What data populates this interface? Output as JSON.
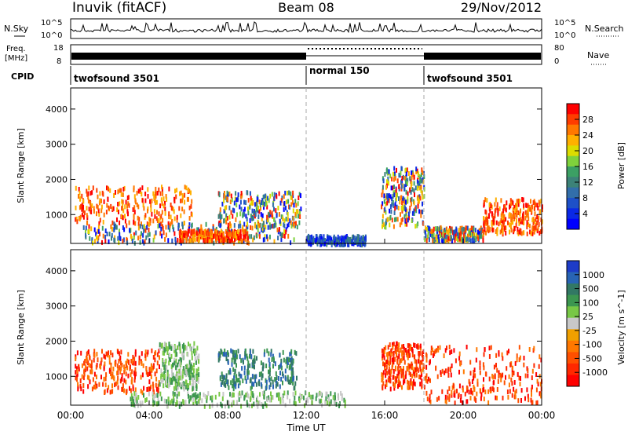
{
  "header": {
    "station": "Inuvik (fitACF)",
    "beam": "Beam 08",
    "date": "29/Nov/2012"
  },
  "nsky": {
    "label": "N.Sky",
    "ticks": [
      "10^5",
      "10^0"
    ],
    "right_label": "N.Search",
    "right_ticks": [
      "10^5",
      "10^0"
    ]
  },
  "freq": {
    "label_line1": "Freq.",
    "label_line2": "[MHz]",
    "ticks": [
      "18",
      "8"
    ],
    "right_label": "Nave",
    "right_ticks": [
      "80",
      "0"
    ]
  },
  "cpid": {
    "label": "CPID",
    "segments": [
      {
        "name": "twofsound 3501",
        "start": 0,
        "end": 12
      },
      {
        "name": "normal 150",
        "start": 12,
        "end": 18
      },
      {
        "name": "twofsound 3501",
        "start": 18,
        "end": 24
      }
    ]
  },
  "x_axis": {
    "label": "Time UT",
    "ticks": [
      "00:00",
      "04:00",
      "08:00",
      "12:00",
      "16:00",
      "20:00",
      "00:00"
    ],
    "range_hours": [
      0,
      24
    ]
  },
  "chart_data": [
    {
      "type": "heatmap",
      "quantity": "power",
      "ylabel": "Slant Range [km]",
      "ylim": [
        180,
        4600
      ],
      "yticks": [
        1000,
        2000,
        3000,
        4000
      ],
      "colorbar": {
        "label": "Power [dB]",
        "ticks": [
          "28",
          "24",
          "20",
          "16",
          "12",
          "8",
          "4"
        ],
        "colors": [
          "#ff0000",
          "#ff3c00",
          "#ff7800",
          "#ffb000",
          "#dcdc00",
          "#7fd23c",
          "#3ca064",
          "#3c8278",
          "#326eaa",
          "#1e50c8",
          "#0a28e6",
          "#0000ff"
        ]
      },
      "regions": [
        {
          "t": [
            0.2,
            6.2
          ],
          "r": [
            800,
            1850
          ],
          "level": "high"
        },
        {
          "t": [
            0.5,
            11.5
          ],
          "r": [
            250,
            800
          ],
          "level": "mid"
        },
        {
          "t": [
            5.5,
            9.0
          ],
          "r": [
            300,
            600
          ],
          "level": "high"
        },
        {
          "t": [
            7.5,
            11.7
          ],
          "r": [
            700,
            1700
          ],
          "level": "mid"
        },
        {
          "t": [
            12.0,
            15.0
          ],
          "r": [
            200,
            450
          ],
          "level": "low"
        },
        {
          "t": [
            15.8,
            18.0
          ],
          "r": [
            700,
            2400
          ],
          "level": "mid"
        },
        {
          "t": [
            18.0,
            21.0
          ],
          "r": [
            300,
            700
          ],
          "level": "mid"
        },
        {
          "t": [
            21.0,
            24.0
          ],
          "r": [
            500,
            1500
          ],
          "level": "high"
        }
      ]
    },
    {
      "type": "heatmap",
      "quantity": "velocity",
      "ylabel": "Slant Range [km]",
      "ylim": [
        180,
        4600
      ],
      "yticks": [
        1000,
        2000,
        3000,
        4000
      ],
      "colorbar": {
        "label": "Velocity [m s^-1]",
        "ticks": [
          "1000",
          "500",
          "100",
          "25",
          "-25",
          "-100",
          "-500",
          "-1000"
        ],
        "colors": [
          "#1e3cc8",
          "#2864b4",
          "#327864",
          "#3c9650",
          "#78c846",
          "#c8c8c8",
          "#f0a000",
          "#ff7800",
          "#ff5000",
          "#ff2800",
          "#ff0000"
        ]
      },
      "regions": [
        {
          "t": [
            0.2,
            4.5
          ],
          "r": [
            600,
            1800
          ],
          "level": "negative"
        },
        {
          "t": [
            4.5,
            6.5
          ],
          "r": [
            700,
            2000
          ],
          "level": "small"
        },
        {
          "t": [
            7.5,
            11.5
          ],
          "r": [
            700,
            1800
          ],
          "level": "positive"
        },
        {
          "t": [
            3.0,
            14.0
          ],
          "r": [
            200,
            600
          ],
          "level": "small"
        },
        {
          "t": [
            15.8,
            18.0
          ],
          "r": [
            700,
            2000
          ],
          "level": "negative"
        },
        {
          "t": [
            18.0,
            24.0
          ],
          "r": [
            300,
            1900
          ],
          "level": "negative"
        }
      ]
    }
  ]
}
